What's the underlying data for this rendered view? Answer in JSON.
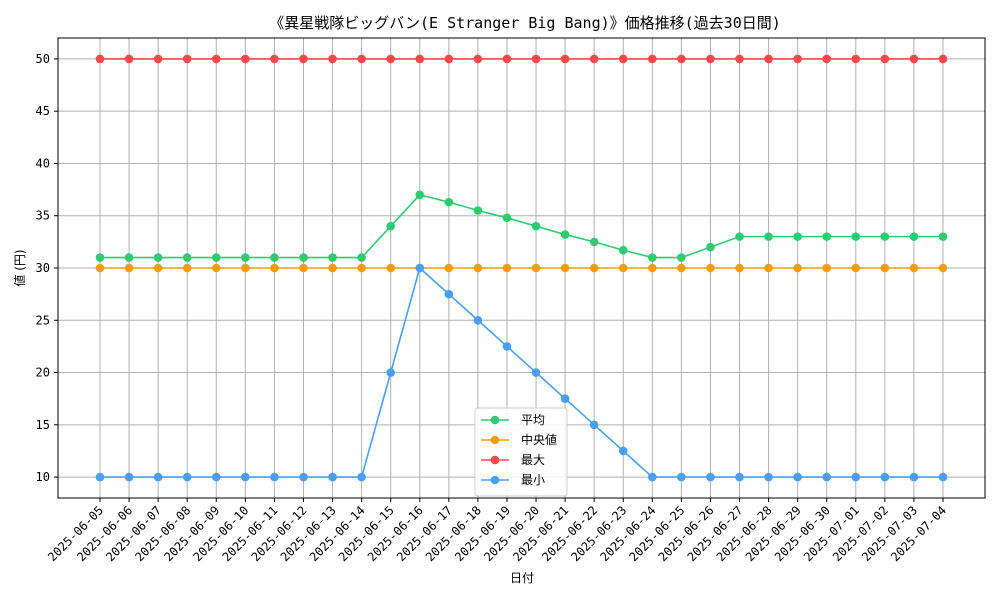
{
  "chart_data": {
    "type": "line",
    "title": "《異星戦隊ビッグバン(E Stranger Big Bang)》価格推移(過去30日間)",
    "xlabel": "日付",
    "ylabel": "値 (円)",
    "ylim": [
      8,
      52
    ],
    "yticks": [
      10,
      15,
      20,
      25,
      30,
      35,
      40,
      45,
      50
    ],
    "grid": true,
    "legend_position": "lower-center",
    "categories": [
      "2025-06-05",
      "2025-06-06",
      "2025-06-07",
      "2025-06-08",
      "2025-06-09",
      "2025-06-10",
      "2025-06-11",
      "2025-06-12",
      "2025-06-13",
      "2025-06-14",
      "2025-06-15",
      "2025-06-16",
      "2025-06-17",
      "2025-06-18",
      "2025-06-19",
      "2025-06-20",
      "2025-06-21",
      "2025-06-22",
      "2025-06-23",
      "2025-06-24",
      "2025-06-25",
      "2025-06-26",
      "2025-06-27",
      "2025-06-28",
      "2025-06-29",
      "2025-06-30",
      "2025-07-01",
      "2025-07-02",
      "2025-07-03",
      "2025-07-04"
    ],
    "series": [
      {
        "name": "平均",
        "color": "#2ecc71",
        "values": [
          31,
          31,
          31,
          31,
          31,
          31,
          31,
          31,
          31,
          31,
          34,
          37,
          36.3,
          35.5,
          34.8,
          34,
          33.2,
          32.5,
          31.7,
          31,
          31,
          32,
          33,
          33,
          33,
          33,
          33,
          33,
          33,
          33
        ]
      },
      {
        "name": "中央値",
        "color": "#f39c12",
        "values": [
          30,
          30,
          30,
          30,
          30,
          30,
          30,
          30,
          30,
          30,
          30,
          30,
          30,
          30,
          30,
          30,
          30,
          30,
          30,
          30,
          30,
          30,
          30,
          30,
          30,
          30,
          30,
          30,
          30,
          30
        ]
      },
      {
        "name": "最大",
        "color": "#f04a4a",
        "values": [
          50,
          50,
          50,
          50,
          50,
          50,
          50,
          50,
          50,
          50,
          50,
          50,
          50,
          50,
          50,
          50,
          50,
          50,
          50,
          50,
          50,
          50,
          50,
          50,
          50,
          50,
          50,
          50,
          50,
          50
        ]
      },
      {
        "name": "最小",
        "color": "#4a9ff5",
        "values": [
          10,
          10,
          10,
          10,
          10,
          10,
          10,
          10,
          10,
          10,
          20,
          30,
          27.5,
          25,
          22.5,
          20,
          17.5,
          15,
          12.5,
          10,
          10,
          10,
          10,
          10,
          10,
          10,
          10,
          10,
          10,
          10
        ]
      }
    ]
  }
}
